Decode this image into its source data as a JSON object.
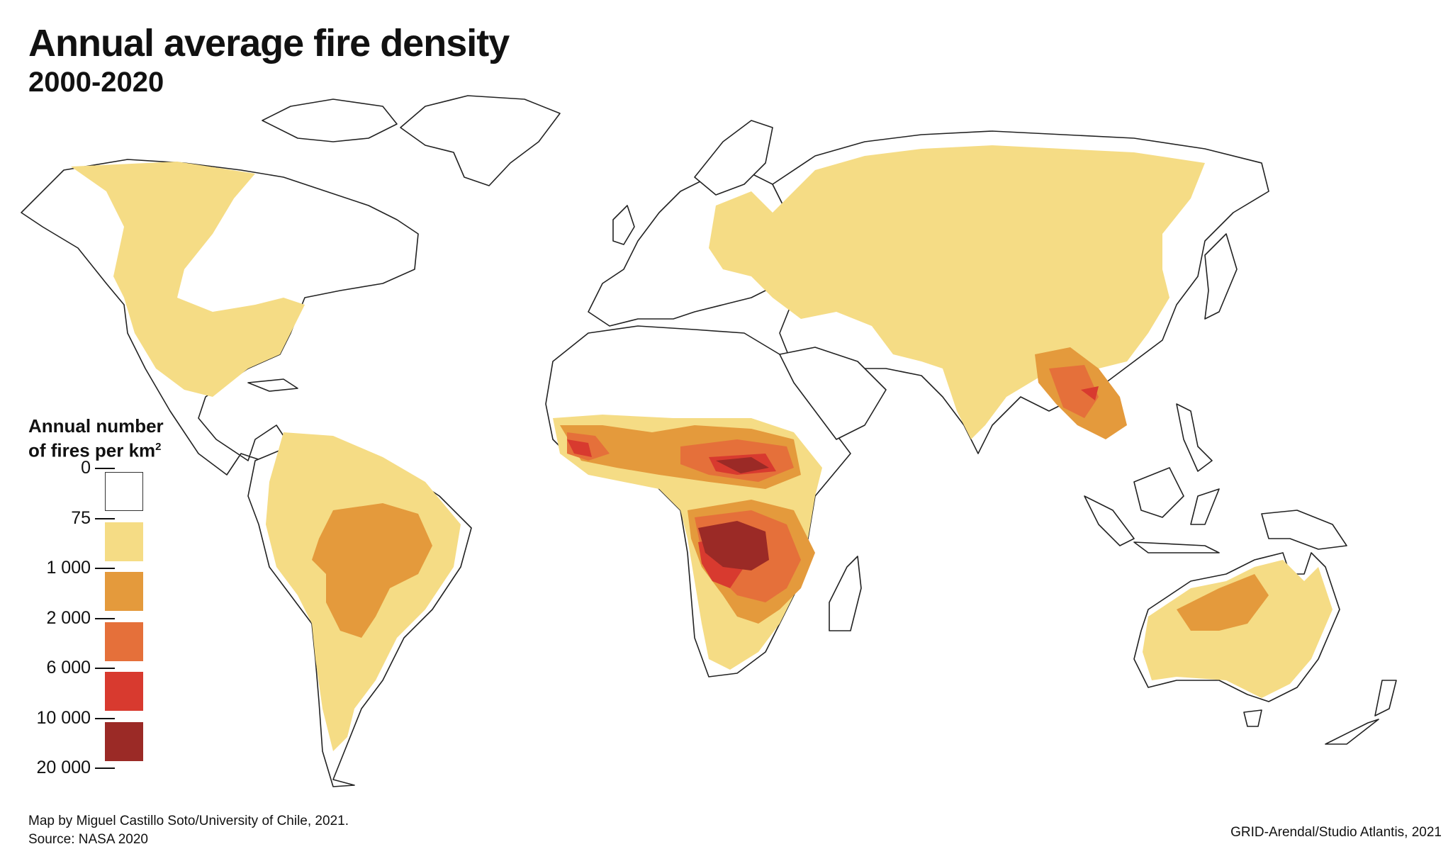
{
  "title": "Annual average fire density",
  "subtitle": "2000-2020",
  "legend": {
    "title_line1": "Annual number",
    "title_line2_text": "of fires per km",
    "title_line2_sup": "2",
    "labels": [
      "0",
      "75",
      "1 000",
      "2 000",
      "6 000",
      "10 000",
      "20 000"
    ],
    "classes": [
      {
        "range": "0-75",
        "color": "#ffffff"
      },
      {
        "range": "75-1 000",
        "color": "#f5dc85"
      },
      {
        "range": "1 000-2 000",
        "color": "#e49a3c"
      },
      {
        "range": "2 000-6 000",
        "color": "#e5703a"
      },
      {
        "range": "6 000-10 000",
        "color": "#d83a2f"
      },
      {
        "range": "10 000-20 000",
        "color": "#9b2a26"
      }
    ]
  },
  "credits": {
    "map_by": "Map by Miguel Castillo Soto/University of Chile, 2021.",
    "source": "Source: NASA 2020",
    "publisher": "GRID-Arendal/Studio Atlantis, 2021"
  },
  "colors": {
    "land_outline": "#222222",
    "low": "#f5dc85",
    "medium": "#e49a3c",
    "high": "#e5703a",
    "very_high": "#d83a2f",
    "extreme": "#9b2a26"
  }
}
